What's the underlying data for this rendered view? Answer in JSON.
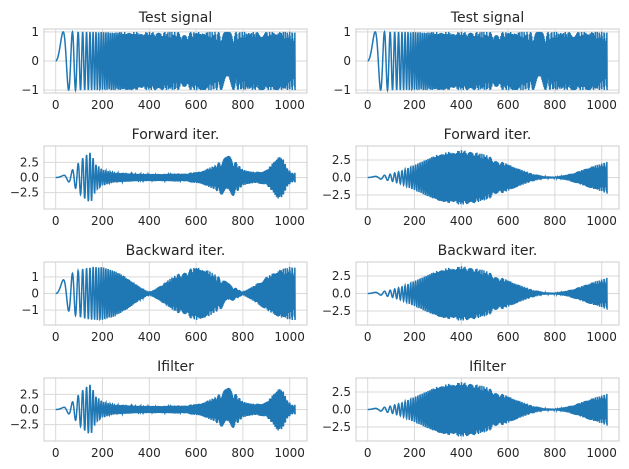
{
  "colors": {
    "line": "#1f77b4",
    "grid": "#d9d9d9",
    "frame": "#cccccc",
    "text": "#262626",
    "background": "#ffffff"
  },
  "chart_data": [
    {
      "type": "line",
      "title": "Test signal",
      "xlabel": "",
      "ylabel": "",
      "xlim": [
        -50,
        1074
      ],
      "ylim": [
        -1.1,
        1.1
      ],
      "xticks": [
        0,
        200,
        400,
        600,
        800,
        1000
      ],
      "xtick_labels": [
        "0",
        "200",
        "400",
        "600",
        "800",
        "1000"
      ],
      "yticks": [
        1,
        0,
        -1
      ],
      "ytick_labels": [
        "1",
        "0",
        "−1"
      ],
      "grid": true,
      "series": [
        {
          "envelope_x": [
            0,
            1023
          ],
          "envelope_amplitude": [
            1,
            1
          ],
          "description_freq_start": 0,
          "description_freq_end": 0.5
        }
      ]
    },
    {
      "type": "line",
      "title": "Test signal",
      "xlabel": "",
      "ylabel": "",
      "xlim": [
        -50,
        1074
      ],
      "ylim": [
        -1.1,
        1.1
      ],
      "xticks": [
        0,
        200,
        400,
        600,
        800,
        1000
      ],
      "xtick_labels": [
        "0",
        "200",
        "400",
        "600",
        "800",
        "1000"
      ],
      "yticks": [
        1,
        0,
        -1
      ],
      "ytick_labels": [
        "1",
        "0",
        "−1"
      ],
      "grid": true,
      "series": [
        {
          "envelope_x": [
            0,
            1023
          ],
          "envelope_amplitude": [
            1,
            1
          ],
          "description_freq_start": 0,
          "description_freq_end": 0.5
        }
      ]
    },
    {
      "type": "line",
      "title": "Forward iter.",
      "xlabel": "",
      "ylabel": "",
      "xlim": [
        -50,
        1074
      ],
      "ylim": [
        -5.2,
        5.2
      ],
      "xticks": [
        0,
        200,
        400,
        600,
        800,
        1000
      ],
      "xtick_labels": [
        "0",
        "200",
        "400",
        "600",
        "800",
        "1000"
      ],
      "yticks": [
        2.5,
        0,
        -2.5
      ],
      "ytick_labels": [
        "2.5",
        "0.0",
        "−2.5"
      ],
      "grid": true,
      "series": [
        {
          "envelope_x": [
            0,
            30,
            60,
            90,
            110,
            130,
            150,
            170,
            200,
            250,
            350,
            450,
            550,
            620,
            680,
            720,
            740,
            760,
            800,
            850,
            900,
            930,
            950,
            970,
            990,
            1010,
            1023
          ],
          "envelope_amplitude": [
            0.1,
            0.3,
            0.8,
            2.0,
            3.0,
            3.7,
            4.2,
            2.2,
            1.3,
            0.8,
            0.6,
            0.6,
            0.7,
            1.0,
            2.0,
            3.2,
            3.6,
            3.0,
            1.3,
            0.9,
            1.2,
            2.5,
            3.5,
            3.2,
            1.5,
            0.8,
            0.8
          ]
        }
      ]
    },
    {
      "type": "line",
      "title": "Forward iter.",
      "xlabel": "",
      "ylabel": "",
      "xlim": [
        -50,
        1074
      ],
      "ylim": [
        -4.5,
        4.5
      ],
      "xticks": [
        0,
        200,
        400,
        600,
        800,
        1000
      ],
      "xtick_labels": [
        "0",
        "200",
        "400",
        "600",
        "800",
        "1000"
      ],
      "yticks": [
        2.5,
        0,
        -2.5
      ],
      "ytick_labels": [
        "2.5",
        "0.0",
        "−2.5"
      ],
      "grid": true,
      "series": [
        {
          "envelope_x": [
            0,
            50,
            100,
            150,
            200,
            250,
            300,
            350,
            400,
            450,
            500,
            550,
            600,
            650,
            700,
            750,
            800,
            850,
            900,
            950,
            1000,
            1023
          ],
          "envelope_amplitude": [
            0.1,
            0.2,
            0.5,
            1.0,
            1.8,
            2.6,
            3.3,
            3.7,
            3.9,
            3.7,
            3.3,
            2.6,
            1.9,
            1.2,
            0.6,
            0.2,
            0.1,
            0.4,
            0.9,
            1.5,
            2.0,
            2.3
          ]
        }
      ]
    },
    {
      "type": "line",
      "title": "Backward iter.",
      "xlabel": "",
      "ylabel": "",
      "xlim": [
        -50,
        1074
      ],
      "ylim": [
        -1.9,
        1.9
      ],
      "xticks": [
        0,
        200,
        400,
        600,
        800,
        1000
      ],
      "xtick_labels": [
        "0",
        "200",
        "400",
        "600",
        "800",
        "1000"
      ],
      "yticks": [
        1,
        0,
        -1
      ],
      "ytick_labels": [
        "1",
        "0",
        "−1"
      ],
      "grid": true,
      "series": [
        {
          "envelope_x": [
            0,
            40,
            80,
            120,
            160,
            200,
            250,
            300,
            350,
            400,
            450,
            500,
            550,
            600,
            650,
            700,
            750,
            800,
            850,
            900,
            950,
            1000,
            1023
          ],
          "envelope_amplitude": [
            0.5,
            0.9,
            1.3,
            1.5,
            1.6,
            1.6,
            1.4,
            1.0,
            0.5,
            0.05,
            0.5,
            1.0,
            1.4,
            1.6,
            1.4,
            1.0,
            0.5,
            0.1,
            0.5,
            1.0,
            1.4,
            1.6,
            1.6
          ]
        }
      ]
    },
    {
      "type": "line",
      "title": "Backward iter.",
      "xlabel": "",
      "ylabel": "",
      "xlim": [
        -50,
        1074
      ],
      "ylim": [
        -4.5,
        4.5
      ],
      "xticks": [
        0,
        200,
        400,
        600,
        800,
        1000
      ],
      "xtick_labels": [
        "0",
        "200",
        "400",
        "600",
        "800",
        "1000"
      ],
      "yticks": [
        2.5,
        0,
        -2.5
      ],
      "ytick_labels": [
        "2.5",
        "0.0",
        "−2.5"
      ],
      "grid": true,
      "series": [
        {
          "envelope_x": [
            0,
            50,
            100,
            150,
            200,
            250,
            300,
            350,
            400,
            450,
            500,
            550,
            600,
            650,
            700,
            750,
            800,
            850,
            900,
            950,
            1000,
            1023
          ],
          "envelope_amplitude": [
            0.1,
            0.2,
            0.5,
            1.0,
            1.8,
            2.6,
            3.3,
            3.7,
            3.9,
            3.7,
            3.3,
            2.6,
            1.9,
            1.2,
            0.6,
            0.2,
            0.1,
            0.4,
            0.9,
            1.5,
            2.0,
            2.3
          ]
        }
      ]
    },
    {
      "type": "line",
      "title": "Ifilter",
      "xlabel": "",
      "ylabel": "",
      "xlim": [
        -50,
        1074
      ],
      "ylim": [
        -5.2,
        5.2
      ],
      "xticks": [
        0,
        200,
        400,
        600,
        800,
        1000
      ],
      "xtick_labels": [
        "0",
        "200",
        "400",
        "600",
        "800",
        "1000"
      ],
      "yticks": [
        2.5,
        0,
        -2.5
      ],
      "ytick_labels": [
        "2.5",
        "0.0",
        "−2.5"
      ],
      "grid": true,
      "series": [
        {
          "envelope_x": [
            0,
            30,
            60,
            90,
            110,
            130,
            150,
            170,
            200,
            250,
            350,
            450,
            550,
            620,
            680,
            720,
            740,
            760,
            800,
            850,
            900,
            930,
            950,
            970,
            990,
            1010,
            1023
          ],
          "envelope_amplitude": [
            0.1,
            0.3,
            0.8,
            2.0,
            3.0,
            3.7,
            4.2,
            2.2,
            1.3,
            0.8,
            0.6,
            0.6,
            0.7,
            1.0,
            2.0,
            3.2,
            3.6,
            3.0,
            1.3,
            0.9,
            1.2,
            2.5,
            3.5,
            3.2,
            1.5,
            0.8,
            0.8
          ]
        }
      ]
    },
    {
      "type": "line",
      "title": "Ifilter",
      "xlabel": "",
      "ylabel": "",
      "xlim": [
        -50,
        1074
      ],
      "ylim": [
        -4.5,
        4.5
      ],
      "xticks": [
        0,
        200,
        400,
        600,
        800,
        1000
      ],
      "xtick_labels": [
        "0",
        "200",
        "400",
        "600",
        "800",
        "1000"
      ],
      "yticks": [
        2.5,
        0,
        -2.5
      ],
      "ytick_labels": [
        "2.5",
        "0.0",
        "−2.5"
      ],
      "grid": true,
      "series": [
        {
          "envelope_x": [
            0,
            50,
            100,
            150,
            200,
            250,
            300,
            350,
            400,
            450,
            500,
            550,
            600,
            650,
            700,
            750,
            800,
            850,
            900,
            950,
            1000,
            1023
          ],
          "envelope_amplitude": [
            0.1,
            0.2,
            0.5,
            1.0,
            1.8,
            2.6,
            3.3,
            3.7,
            3.9,
            3.7,
            3.3,
            2.6,
            1.9,
            1.2,
            0.6,
            0.2,
            0.1,
            0.4,
            0.9,
            1.5,
            2.0,
            2.3
          ]
        }
      ]
    }
  ]
}
